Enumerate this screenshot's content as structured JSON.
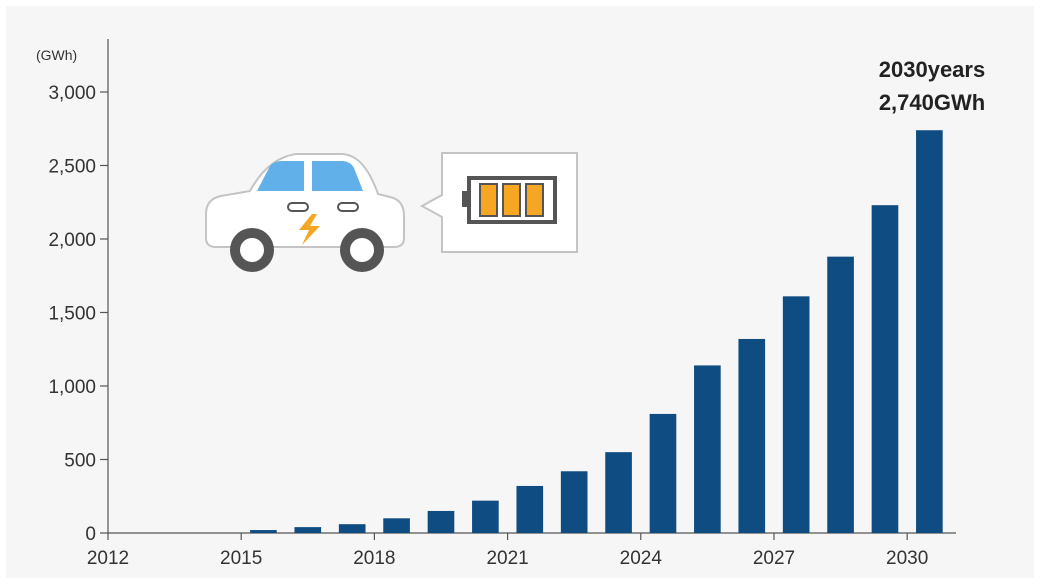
{
  "chart_data": {
    "type": "bar",
    "unit_label": "(GWh)",
    "x": [
      2015.5,
      2016.5,
      2017.5,
      2018.5,
      2019.5,
      2020.5,
      2021.5,
      2022.5,
      2023.5,
      2024.5,
      2025.5,
      2026.5,
      2027.5,
      2028.5,
      2029.5,
      2030.5
    ],
    "values": [
      20,
      40,
      60,
      100,
      150,
      220,
      320,
      420,
      550,
      810,
      1140,
      1320,
      1610,
      1880,
      2230,
      2740
    ],
    "xticks": [
      {
        "value": 2012,
        "label": "2012"
      },
      {
        "value": 2015,
        "label": "2015"
      },
      {
        "value": 2018,
        "label": "2018"
      },
      {
        "value": 2021,
        "label": "2021"
      },
      {
        "value": 2024,
        "label": "2024"
      },
      {
        "value": 2027,
        "label": "2027"
      },
      {
        "value": 2030,
        "label": "2030"
      }
    ],
    "yticks": [
      {
        "value": 0,
        "label": "0"
      },
      {
        "value": 500,
        "label": "500"
      },
      {
        "value": 1000,
        "label": "1,000"
      },
      {
        "value": 1500,
        "label": "1,500"
      },
      {
        "value": 2000,
        "label": "2,000"
      },
      {
        "value": 2500,
        "label": "2,500"
      },
      {
        "value": 3000,
        "label": "3,000"
      }
    ],
    "xlim": [
      2012,
      2031.1
    ],
    "ylim": [
      0,
      3000
    ],
    "grid": false,
    "bar_color": "#0f4c81",
    "annotation": {
      "line1": "2030years",
      "line2": "2,740GWh"
    }
  },
  "illustration": {
    "icons": [
      "car-icon",
      "battery-icon"
    ],
    "colors": {
      "window": "#62b0ea",
      "wheel": "#555555",
      "battery_cell": "#f5a623",
      "bolt": "#f5a623"
    }
  }
}
